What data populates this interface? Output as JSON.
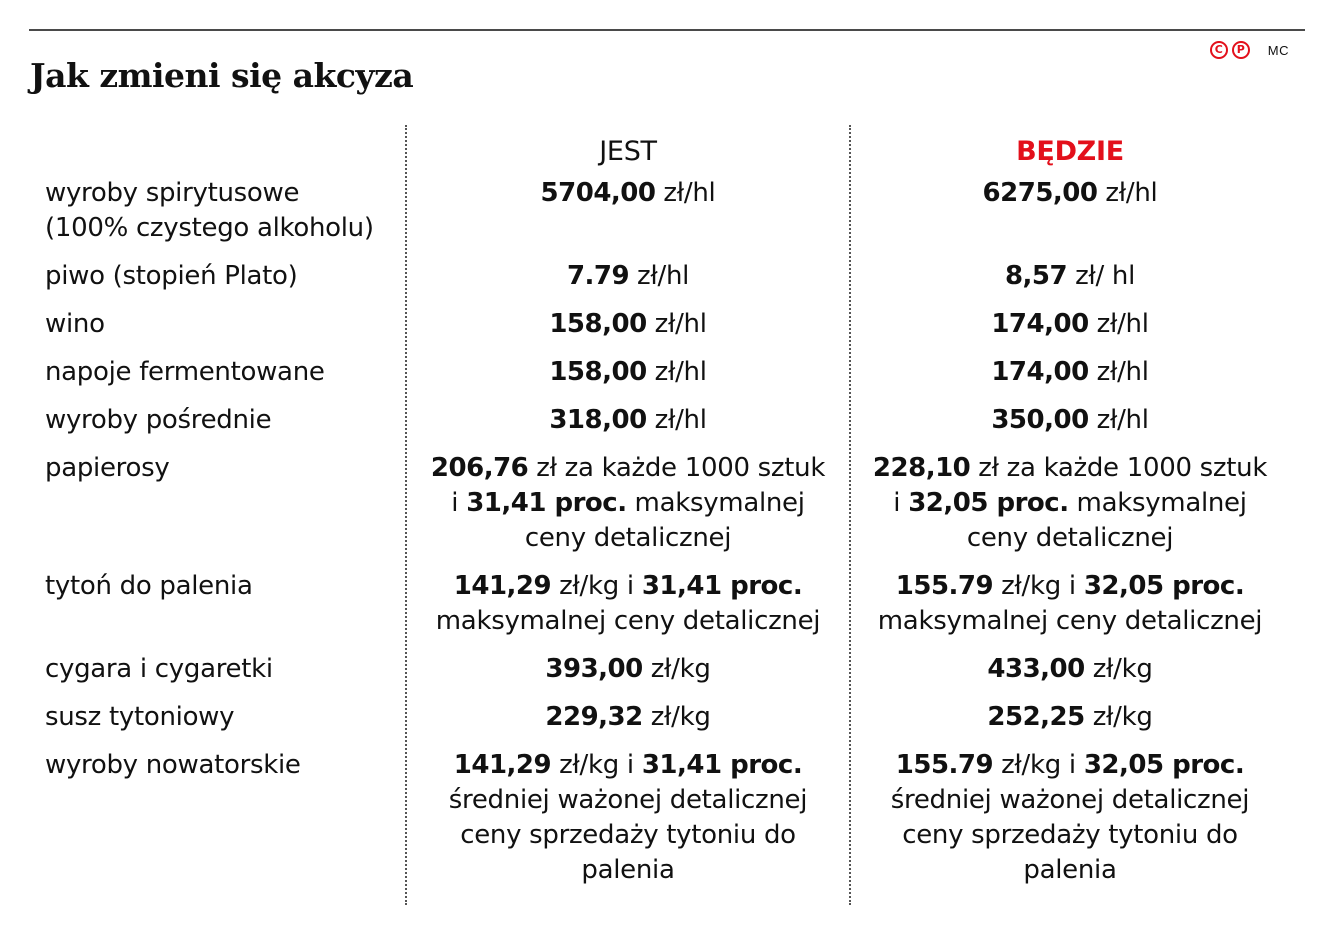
{
  "header": {
    "title": "Jak zmieni się akcyza",
    "copyright_icon": "copyright-icon",
    "copyright_glyph": "C",
    "phonogram_icon": "p-circle-icon",
    "phonogram_glyph": "P",
    "author": "MC"
  },
  "colors": {
    "accent": "#e3101b",
    "text": "#111111",
    "rule": "#4a4a4a"
  },
  "table": {
    "columns": {
      "label": "",
      "jest": "JEST",
      "bedzie": "BĘDZIE"
    },
    "rows": [
      {
        "label_lines": [
          "wyroby spirytusowe",
          "(100% czystego alkoholu)"
        ],
        "jest": [
          {
            "bold": "5704,00",
            "rest": " zł/hl"
          }
        ],
        "bedzie": [
          {
            "bold": "6275,00",
            "rest": " zł/hl"
          }
        ]
      },
      {
        "label_lines": [
          "piwo (stopień Plato)"
        ],
        "jest": [
          {
            "bold": "7.79",
            "rest": " zł/hl"
          }
        ],
        "bedzie": [
          {
            "bold": "8,57",
            "rest": " zł/ hl"
          }
        ]
      },
      {
        "label_lines": [
          "wino"
        ],
        "jest": [
          {
            "bold": "158,00",
            "rest": " zł/hl"
          }
        ],
        "bedzie": [
          {
            "bold": "174,00",
            "rest": " zł/hl"
          }
        ]
      },
      {
        "label_lines": [
          "napoje fermentowane"
        ],
        "jest": [
          {
            "bold": "158,00",
            "rest": " zł/hl"
          }
        ],
        "bedzie": [
          {
            "bold": "174,00",
            "rest": " zł/hl"
          }
        ]
      },
      {
        "label_lines": [
          "wyroby pośrednie"
        ],
        "jest": [
          {
            "bold": "318,00",
            "rest": " zł/hl"
          }
        ],
        "bedzie": [
          {
            "bold": "350,00",
            "rest": " zł/hl"
          }
        ]
      },
      {
        "label_lines": [
          "papierosy"
        ],
        "jest": [
          {
            "bold": "206,76",
            "rest": " zł za każde 1000 sztuk"
          },
          {
            "pre": "i ",
            "bold": "31,41 proc.",
            "rest": " maksymalnej"
          },
          {
            "rest": "ceny detalicznej"
          }
        ],
        "bedzie": [
          {
            "bold": "228,10",
            "rest": " zł za każde 1000 sztuk"
          },
          {
            "pre": "i ",
            "bold": "32,05 proc.",
            "rest": " maksymalnej"
          },
          {
            "rest": "ceny detalicznej"
          }
        ]
      },
      {
        "label_lines": [
          "tytoń do palenia"
        ],
        "jest": [
          {
            "bold": "141,29",
            "rest": " zł/kg i ",
            "bold2": "31,41 proc."
          },
          {
            "rest": "maksymalnej ceny detalicznej"
          }
        ],
        "bedzie": [
          {
            "bold": "155.79",
            "rest": " zł/kg i ",
            "bold2": "32,05 proc."
          },
          {
            "rest": "maksymalnej ceny detalicznej"
          }
        ]
      },
      {
        "label_lines": [
          "cygara i cygaretki"
        ],
        "jest": [
          {
            "bold": "393,00",
            "rest": " zł/kg"
          }
        ],
        "bedzie": [
          {
            "bold": "433,00",
            "rest": " zł/kg"
          }
        ]
      },
      {
        "label_lines": [
          "susz tytoniowy"
        ],
        "jest": [
          {
            "bold": "229,32",
            "rest": " zł/kg"
          }
        ],
        "bedzie": [
          {
            "bold": "252,25",
            "rest": " zł/kg"
          }
        ]
      },
      {
        "label_lines": [
          "wyroby nowatorskie"
        ],
        "jest": [
          {
            "bold": "141,29",
            "rest": " zł/kg i ",
            "bold2": "31,41 proc."
          },
          {
            "rest": "średniej ważonej detalicznej"
          },
          {
            "rest": "ceny sprzedaży tytoniu do"
          },
          {
            "rest": "palenia"
          }
        ],
        "bedzie": [
          {
            "bold": "155.79",
            "rest": " zł/kg i ",
            "bold2": "32,05 proc."
          },
          {
            "rest": "średniej ważonej detalicznej"
          },
          {
            "rest": "ceny sprzedaży tytoniu do"
          },
          {
            "rest": "palenia"
          }
        ]
      }
    ]
  }
}
